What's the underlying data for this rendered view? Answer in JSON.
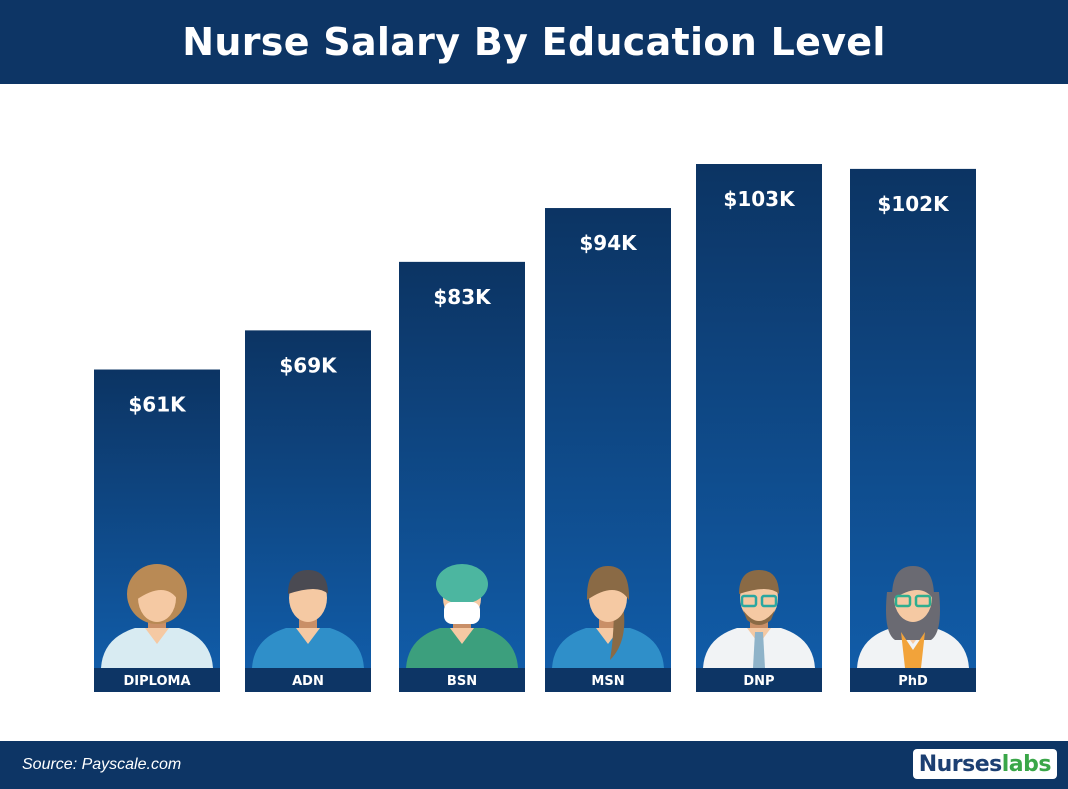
{
  "header": {
    "title": "Nurse Salary By Education Level"
  },
  "footer": {
    "source": "Source: Payscale.com",
    "logo_part1": "Nurses",
    "logo_part2": "labs"
  },
  "colors": {
    "header_bg": "#0d3565",
    "bar_top": "#0c3463",
    "bar_bottom": "#115ca8",
    "label_bg": "#0d3565",
    "brand_green": "#3aa648"
  },
  "chart_data": {
    "type": "bar",
    "title": "Nurse Salary By Education Level",
    "categories": [
      "DIPLOMA",
      "ADN",
      "BSN",
      "MSN",
      "DNP",
      "PhD"
    ],
    "values": [
      61,
      69,
      83,
      94,
      103,
      102
    ],
    "value_labels": [
      "$61K",
      "$69K",
      "$83K",
      "$94K",
      "$103K",
      "$102K"
    ],
    "icons": [
      "nurse-woman-short-hair-icon",
      "nurse-man-icon",
      "surgeon-masked-icon",
      "nurse-woman-ponytail-icon",
      "doctor-man-glasses-icon",
      "doctor-woman-glasses-icon"
    ],
    "ylabel": "",
    "xlabel": "",
    "unit": "K USD",
    "ylim": [
      0,
      103
    ],
    "grid": false,
    "legend": "none"
  }
}
